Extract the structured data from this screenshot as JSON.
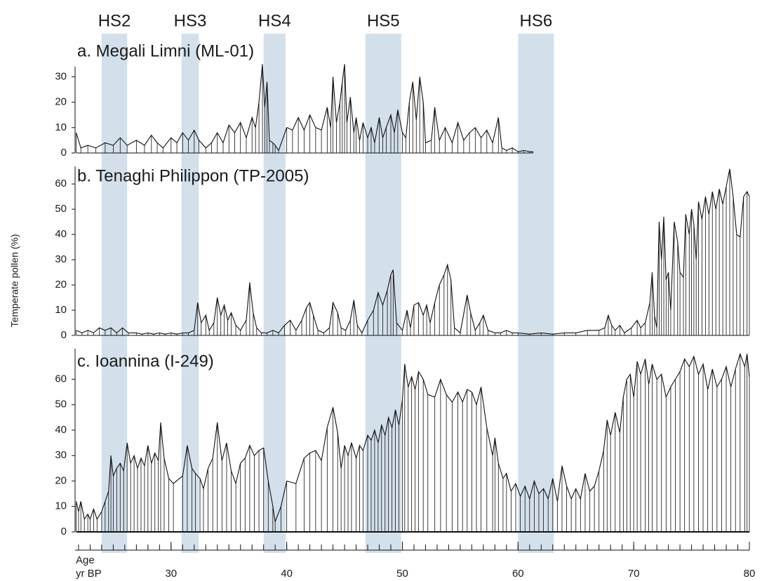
{
  "chart_data": {
    "type": "line",
    "ylabel": "Temperate pollen (%)",
    "xlabel": [
      "Age",
      "yr BP"
    ],
    "xlim": [
      21.7,
      80
    ],
    "xticks": [
      30,
      40,
      50,
      60,
      70,
      80
    ],
    "xminorticks": [
      22,
      23,
      24,
      25,
      26,
      27,
      28,
      29,
      30,
      31,
      32,
      33,
      34,
      35,
      36,
      37,
      38,
      39,
      40,
      41,
      42,
      43,
      44,
      45,
      46,
      47,
      48,
      49,
      50,
      51,
      52,
      53,
      54,
      55,
      56,
      57,
      58,
      59,
      60,
      61,
      62,
      63,
      64,
      65,
      66,
      67,
      68,
      69,
      70,
      71,
      72,
      73,
      74,
      75,
      76,
      77,
      78,
      79,
      80
    ],
    "color": "#111111",
    "band_color": "#d3e0ec",
    "bands": [
      {
        "label": "HS2",
        "start": 24.0,
        "end": 26.2
      },
      {
        "label": "HS3",
        "start": 30.9,
        "end": 32.4
      },
      {
        "label": "HS4",
        "start": 38.0,
        "end": 39.9
      },
      {
        "label": "HS5",
        "start": 46.8,
        "end": 49.9
      },
      {
        "label": "HS6",
        "start": 60.0,
        "end": 63.1
      }
    ],
    "panels": [
      {
        "title": "a. Megali Limni (ML-01)",
        "ylim": [
          0,
          34
        ],
        "yticks": [
          0,
          10,
          20,
          30
        ],
        "x": [
          21.8,
          22.2,
          22.8,
          23.5,
          24.3,
          25,
          25.6,
          26.2,
          27,
          27.7,
          28.3,
          28.8,
          29.3,
          30,
          30.5,
          31,
          31.5,
          32,
          32.4,
          33,
          33.5,
          34,
          34.5,
          35,
          35.5,
          36,
          36.5,
          37,
          37.3,
          37.6,
          37.9,
          38.1,
          38.3,
          38.5,
          38.8,
          39,
          39.3,
          40,
          40.5,
          41,
          41.5,
          42,
          42.5,
          43,
          43.5,
          43.8,
          44,
          44.3,
          44.6,
          44.8,
          45,
          45.2,
          45.5,
          45.8,
          46,
          46.3,
          46.6,
          47,
          47.3,
          47.6,
          48,
          48.3,
          48.6,
          49,
          49.3,
          49.6,
          50,
          50.3,
          50.6,
          50.9,
          51.2,
          51.5,
          51.8,
          52,
          52.5,
          52.8,
          53.2,
          53.7,
          54.3,
          54.8,
          55.3,
          55.8,
          56.3,
          56.8,
          57.3,
          57.8,
          58.3,
          58.6,
          59,
          59.5,
          60,
          60.5,
          61,
          61.3
        ],
        "values": [
          8,
          2,
          3,
          2,
          4,
          3,
          6,
          3,
          5,
          3,
          7,
          4,
          2,
          6,
          4,
          8,
          5,
          9,
          5,
          2,
          4,
          8,
          4,
          11,
          8,
          12,
          6,
          14,
          10,
          20,
          35,
          18,
          28,
          5,
          4,
          3,
          1,
          10,
          9,
          14,
          9,
          15,
          10,
          9,
          18,
          10,
          30,
          12,
          20,
          28,
          35,
          12,
          22,
          8,
          14,
          5,
          12,
          6,
          10,
          4,
          14,
          6,
          10,
          15,
          8,
          17,
          8,
          6,
          20,
          28,
          13,
          30,
          20,
          4,
          5,
          18,
          5,
          10,
          4,
          12,
          5,
          8,
          10,
          6,
          9,
          4,
          14,
          2,
          1,
          2,
          0.5,
          1,
          0.5,
          0.5
        ]
      },
      {
        "title": "b. Tenaghi Philippon (TP-2005)",
        "ylim": [
          0,
          67
        ],
        "yticks": [
          0,
          10,
          20,
          30,
          40,
          50,
          60
        ],
        "x": [
          21.8,
          22.3,
          22.8,
          23.3,
          23.8,
          24.3,
          24.8,
          25.3,
          25.8,
          26.3,
          27,
          27.5,
          28,
          28.5,
          29,
          29.5,
          30,
          30.5,
          31,
          31.5,
          32,
          32.3,
          32.6,
          33,
          33.3,
          33.7,
          34,
          34.3,
          34.6,
          34.9,
          35.2,
          35.6,
          36,
          36.5,
          36.8,
          37.1,
          37.4,
          37.8,
          38.3,
          38.8,
          39.3,
          39.8,
          40.3,
          40.8,
          41.3,
          41.7,
          42,
          42.3,
          42.7,
          43.2,
          43.7,
          44,
          44.4,
          44.7,
          45.1,
          45.5,
          45.8,
          46.1,
          46.5,
          47,
          47.5,
          47.9,
          48.3,
          48.7,
          49,
          49.2,
          49.5,
          50,
          50.4,
          50.7,
          51,
          51.4,
          51.8,
          52.1,
          52.4,
          52.8,
          53.2,
          53.6,
          53.9,
          54.2,
          54.5,
          55,
          55.6,
          55.9,
          56.3,
          56.7,
          57,
          57.4,
          58,
          58.5,
          59,
          59.5,
          60,
          61,
          62,
          63,
          64,
          65,
          66,
          67,
          67.5,
          67.8,
          68.1,
          68.4,
          68.8,
          69.2,
          69.8,
          70.3,
          70.6,
          71,
          71.4,
          71.6,
          71.8,
          72,
          72.2,
          72.4,
          72.6,
          72.8,
          73,
          73.2,
          73.5,
          73.8,
          74,
          74.3,
          74.5,
          74.8,
          75,
          75.2,
          75.4,
          75.6,
          75.9,
          76.2,
          76.5,
          76.8,
          77.1,
          77.4,
          77.7,
          78,
          78.3,
          78.6,
          78.9,
          79.2,
          79.5,
          79.8,
          80
        ],
        "values": [
          2,
          1,
          2,
          1,
          3,
          2,
          3,
          1,
          3,
          1,
          1,
          0.5,
          1,
          0.5,
          1,
          0.5,
          1,
          0.5,
          1,
          1,
          2,
          13,
          5,
          8,
          2,
          5,
          15,
          8,
          12,
          6,
          9,
          4,
          2,
          6,
          21,
          9,
          3,
          1,
          1,
          2,
          1,
          4,
          6,
          2,
          6,
          11,
          13,
          8,
          2,
          1,
          3,
          13,
          9,
          3,
          2,
          6,
          14,
          4,
          1,
          6,
          10,
          17,
          12,
          18,
          24,
          26,
          5,
          2,
          10,
          3,
          12,
          13,
          8,
          12,
          5,
          13,
          20,
          24,
          28,
          22,
          3,
          1,
          16,
          9,
          2,
          5,
          8,
          2,
          1,
          1,
          2,
          1,
          1,
          0.5,
          1,
          0.5,
          1,
          1,
          2,
          2,
          3,
          8,
          4,
          2,
          4,
          1,
          3,
          6,
          3,
          5,
          13,
          25,
          8,
          3,
          45,
          30,
          47,
          22,
          25,
          10,
          45,
          37,
          25,
          23,
          48,
          40,
          50,
          44,
          30,
          53,
          46,
          55,
          48,
          57,
          50,
          58,
          52,
          59,
          66,
          55,
          40,
          39,
          55,
          57,
          55
        ]
      },
      {
        "title": "c. Ioannina (I-249)",
        "ylim": [
          0,
          72
        ],
        "yticks": [
          0,
          10,
          20,
          30,
          40,
          50,
          60
        ],
        "x": [
          21.8,
          22,
          22.2,
          22.5,
          22.8,
          23,
          23.3,
          23.6,
          24,
          24.3,
          24.6,
          24.8,
          25,
          25.3,
          25.6,
          25.9,
          26.2,
          26.5,
          26.8,
          27.1,
          27.4,
          27.7,
          28,
          28.3,
          28.6,
          28.9,
          29.1,
          29.4,
          29.8,
          30.2,
          31,
          31.4,
          31.8,
          32.1,
          32.5,
          32.8,
          33.2,
          33.6,
          34,
          34.4,
          34.8,
          35.2,
          35.6,
          36,
          36.4,
          36.8,
          37.2,
          37.6,
          38,
          38.4,
          38.8,
          39,
          39.5,
          40,
          40.8,
          41.5,
          42,
          42.5,
          43,
          43.5,
          44,
          44.4,
          44.7,
          45,
          45.3,
          45.6,
          46,
          46.3,
          46.6,
          47,
          47.3,
          47.6,
          47.9,
          48.2,
          48.5,
          48.8,
          49.1,
          49.4,
          49.7,
          50,
          50.2,
          50.5,
          50.8,
          51.1,
          51.4,
          51.8,
          52.2,
          52.8,
          53.3,
          53.8,
          54.3,
          54.8,
          55.2,
          55.6,
          56,
          56.4,
          56.8,
          57.3,
          57.8,
          58,
          58.3,
          58.7,
          59,
          59.4,
          59.8,
          60.2,
          60.6,
          61,
          61.4,
          61.8,
          62.2,
          62.6,
          63,
          63.4,
          63.8,
          64.2,
          64.6,
          65,
          65.4,
          65.8,
          66.2,
          66.6,
          67,
          67.4,
          67.7,
          68,
          68.4,
          68.8,
          69.1,
          69.4,
          69.7,
          70,
          70.3,
          70.6,
          71,
          71.3,
          71.6,
          72,
          72.4,
          72.8,
          73.2,
          73.6,
          74,
          74.4,
          74.8,
          75.2,
          75.6,
          76,
          76.4,
          76.8,
          77.2,
          77.6,
          78,
          78.4,
          78.8,
          79.2,
          79.6,
          79.8,
          80
        ],
        "values": [
          12,
          8,
          12,
          5,
          7,
          5,
          9,
          5,
          8,
          12,
          16,
          30,
          22,
          25,
          27,
          24,
          35,
          27,
          30,
          25,
          29,
          26,
          34,
          27,
          31,
          28,
          43,
          29,
          21,
          19,
          22,
          34,
          25,
          23,
          21,
          17,
          25,
          29,
          43,
          28,
          35,
          24,
          19,
          27,
          29,
          34,
          30,
          32,
          33,
          20,
          10,
          4,
          10,
          20,
          19,
          29,
          31,
          32,
          28,
          41,
          49,
          39,
          25,
          34,
          30,
          35,
          29,
          34,
          32,
          38,
          36,
          40,
          35,
          42,
          38,
          45,
          41,
          48,
          42,
          52,
          66,
          57,
          61,
          56,
          63,
          60,
          54,
          53,
          60,
          54,
          51,
          55,
          51,
          56,
          55,
          50,
          57,
          41,
          30,
          37,
          27,
          21,
          23,
          16,
          19,
          14,
          18,
          13,
          20,
          15,
          17,
          13,
          21,
          12,
          26,
          18,
          13,
          17,
          13,
          23,
          16,
          18,
          24,
          32,
          44,
          38,
          47,
          39,
          53,
          60,
          62,
          53,
          67,
          62,
          68,
          58,
          66,
          60,
          62,
          53,
          57,
          60,
          63,
          68,
          65,
          69,
          62,
          66,
          56,
          64,
          57,
          60,
          65,
          57,
          64,
          70,
          65,
          70,
          61
        ]
      }
    ]
  }
}
